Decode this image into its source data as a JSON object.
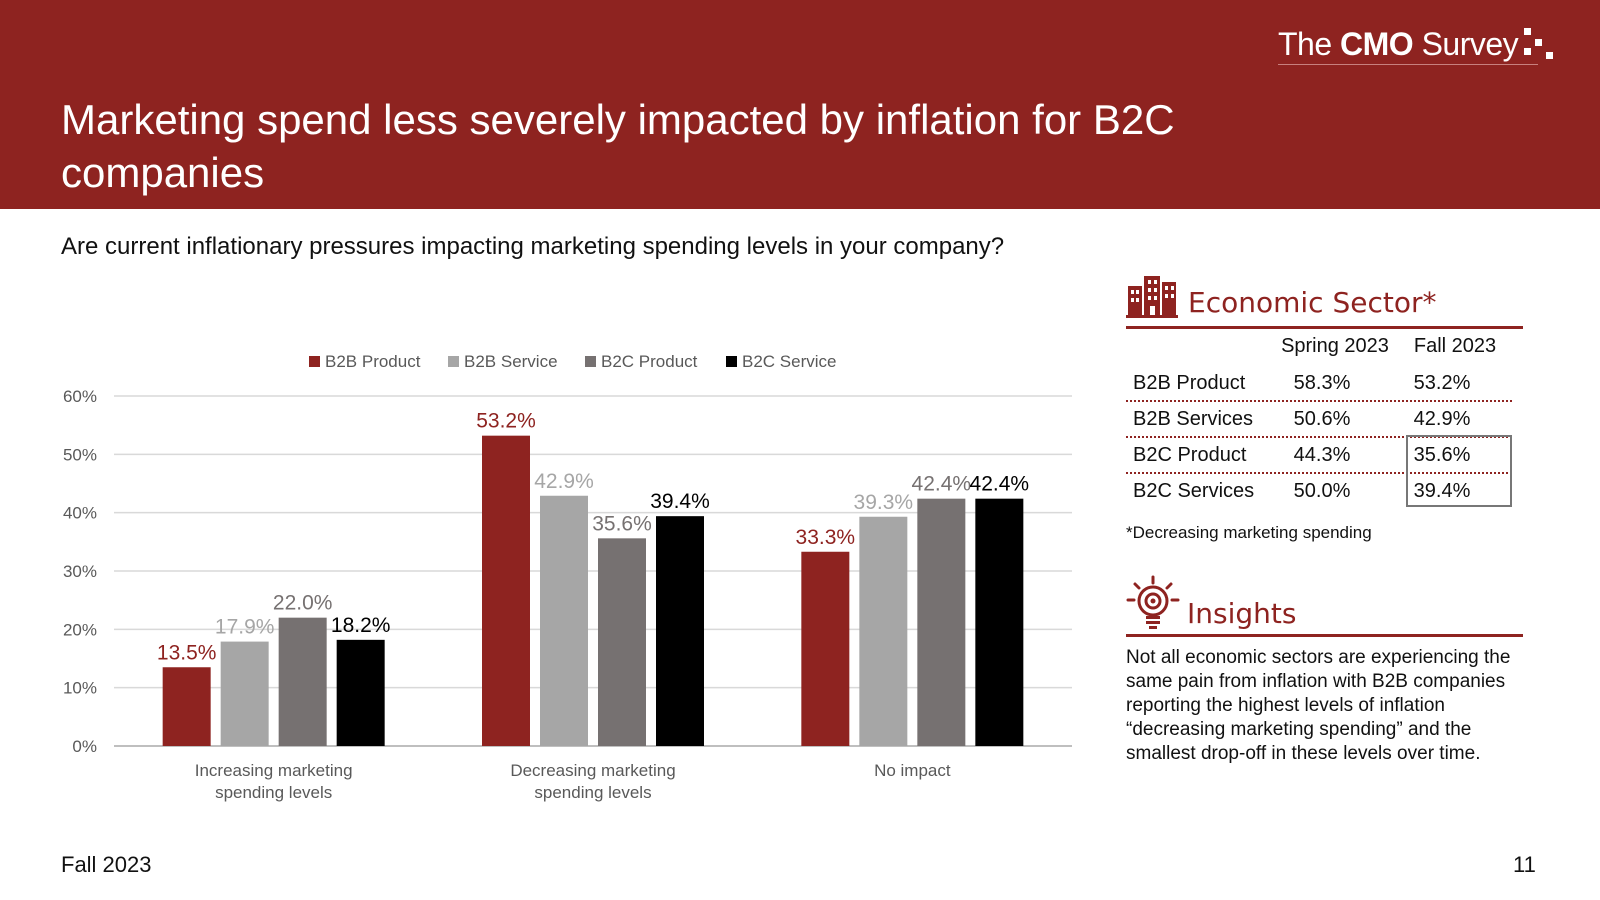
{
  "header": {
    "logo_pre": "The ",
    "logo_bold": "CMO",
    "logo_post": " Survey",
    "title": "Marketing spend less severely impacted by inflation for B2C companies"
  },
  "question": "Are current inflationary pressures impacting marketing spending levels in your company?",
  "colors": {
    "brand": "#8e2320",
    "b2b_product": "#8e2320",
    "b2b_service": "#a6a6a6",
    "b2c_product": "#767171",
    "b2c_service": "#000000"
  },
  "chart_data": {
    "type": "bar",
    "categories": [
      "Increasing marketing spending levels",
      "Decreasing marketing spending levels",
      "No impact"
    ],
    "category_lines": [
      [
        "Increasing marketing",
        "spending levels"
      ],
      [
        "Decreasing marketing",
        "spending levels"
      ],
      [
        "No impact"
      ]
    ],
    "series": [
      {
        "name": "B2B Product",
        "color": "#8e2320",
        "label_color": "#8e2320",
        "values": [
          13.5,
          53.2,
          33.3
        ],
        "labels": [
          "13.5%",
          "53.2%",
          "33.3%"
        ]
      },
      {
        "name": "B2B Service",
        "color": "#a6a6a6",
        "label_color": "#a6a6a6",
        "values": [
          17.9,
          42.9,
          39.3
        ],
        "labels": [
          "17.9%",
          "42.9%",
          "39.3%"
        ]
      },
      {
        "name": "B2C Product",
        "color": "#767171",
        "label_color": "#767171",
        "values": [
          22.0,
          35.6,
          42.4
        ],
        "labels": [
          "22.0%",
          "35.6%",
          "42.4%"
        ]
      },
      {
        "name": "B2C Service",
        "color": "#000000",
        "label_color": "#000000",
        "values": [
          18.2,
          39.4,
          42.4
        ],
        "labels": [
          "18.2%",
          "39.4%",
          "42.4%"
        ]
      }
    ],
    "ylim": [
      0,
      60
    ],
    "yticks": [
      0,
      10,
      20,
      30,
      40,
      50,
      60
    ],
    "ytick_labels": [
      "0%",
      "10%",
      "20%",
      "30%",
      "40%",
      "50%",
      "60%"
    ],
    "grid": true,
    "legend": "top"
  },
  "sector": {
    "title": "Economic Sector*",
    "col1": "Spring 2023",
    "col2": "Fall 2023",
    "rows": [
      {
        "label": "B2B Product",
        "spring": "58.3%",
        "fall": "53.2%"
      },
      {
        "label": "B2B Services",
        "spring": "50.6%",
        "fall": "42.9%"
      },
      {
        "label": "B2C Product",
        "spring": "44.3%",
        "fall": "35.6%"
      },
      {
        "label": "B2C Services",
        "spring": "50.0%",
        "fall": "39.4%"
      }
    ],
    "note": "*Decreasing marketing spending"
  },
  "insights": {
    "title": "Insights",
    "text": "Not all economic sectors are experiencing the same pain from inflation with B2B companies reporting the highest levels of inflation “decreasing marketing spending” and the smallest drop-off in these levels over time."
  },
  "footer": {
    "season": "Fall 2023",
    "page": "11"
  }
}
